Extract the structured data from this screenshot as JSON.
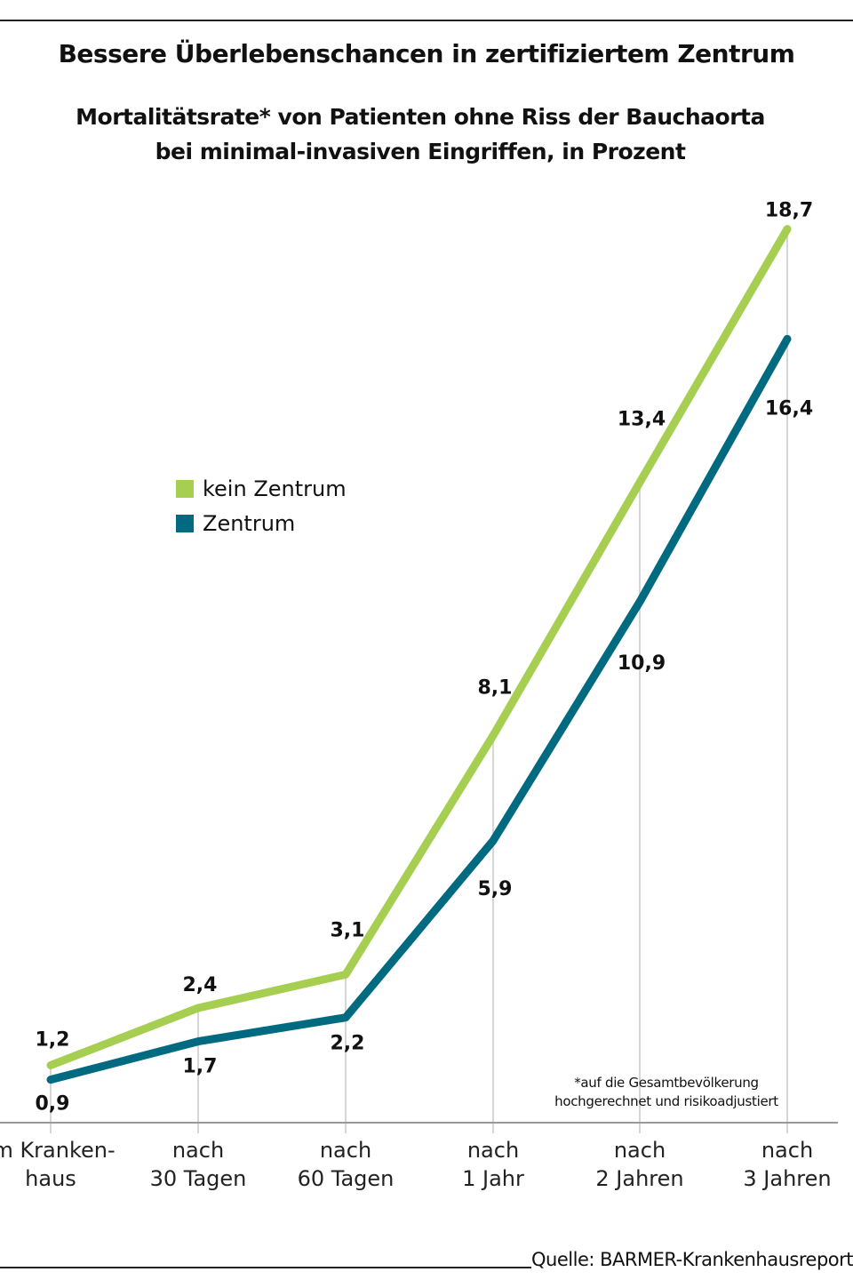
{
  "title": "Bessere Überlebenschancen in zertifiziertem Zentrum",
  "subtitle_line1": "Mortalitätsrate* von Patienten ohne Riss der Bauchaorta",
  "subtitle_line2": "bei minimal-invasiven Eingriffen, in Prozent",
  "footnote_line1": "*auf die Gesamtbevölkerung",
  "footnote_line2": "hochgerechnet und risikoadjustiert",
  "source": "Quelle: BARMER-Krankenhausreport",
  "chart_data": {
    "type": "line",
    "categories": [
      [
        "Im Kranken-",
        "haus"
      ],
      [
        "nach",
        "30 Tagen"
      ],
      [
        "nach",
        "60 Tagen"
      ],
      [
        "nach",
        "1 Jahr"
      ],
      [
        "nach",
        "2 Jahren"
      ],
      [
        "nach",
        "3 Jahren"
      ]
    ],
    "series": [
      {
        "name": "kein Zentrum",
        "color": "#a6cf52",
        "values": [
          1.2,
          2.4,
          3.1,
          8.1,
          13.4,
          18.7
        ],
        "labels": [
          "1,2",
          "2,4",
          "3,1",
          "8,1",
          "13,4",
          "18,7"
        ]
      },
      {
        "name": "Zentrum",
        "color": "#006a80",
        "values": [
          0.9,
          1.7,
          2.2,
          5.9,
          10.9,
          16.4
        ],
        "labels": [
          "0,9",
          "1,7",
          "2,2",
          "5,9",
          "10,9",
          "16,4"
        ]
      }
    ],
    "ylim": [
      0,
      20
    ],
    "grid": false,
    "legend": "middle-left"
  }
}
